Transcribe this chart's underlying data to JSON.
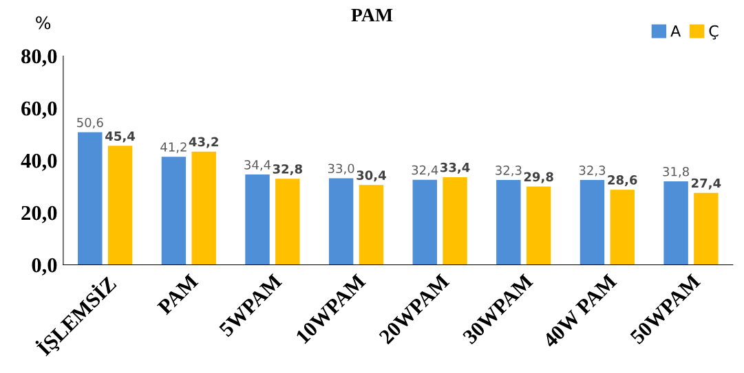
{
  "chart_data": {
    "type": "bar",
    "title": "PAM",
    "ylabel": "%",
    "categories": [
      "İŞLEMSİZ",
      "PAM",
      "5WPAM",
      "10WPAM",
      "20WPAM",
      "30WPAM",
      "40W PAM",
      "50WPAM"
    ],
    "series": [
      {
        "name": "A",
        "color": "#4f8fd8",
        "values": [
          50.6,
          41.2,
          34.4,
          33.0,
          32.4,
          32.3,
          32.3,
          31.8
        ],
        "value_labels": [
          "50,6",
          "41,2",
          "34,4",
          "33,0",
          "32,4",
          "32,3",
          "32,3",
          "31,8"
        ]
      },
      {
        "name": "Ç",
        "color": "#ffc000",
        "values": [
          45.4,
          43.2,
          32.8,
          30.4,
          33.4,
          29.8,
          28.6,
          27.4
        ],
        "value_labels": [
          "45,4",
          "43,2",
          "32,8",
          "30,4",
          "33,4",
          "29,8",
          "28,6",
          "27,4"
        ]
      }
    ],
    "ylim": [
      0,
      80
    ],
    "yticks": [
      {
        "value": 0,
        "label": "0,0"
      },
      {
        "value": 20,
        "label": "20,0"
      },
      {
        "value": 40,
        "label": "40,0"
      },
      {
        "value": 60,
        "label": "60,0"
      },
      {
        "value": 80,
        "label": "80,0"
      }
    ],
    "grid": false,
    "legend": "top right"
  }
}
